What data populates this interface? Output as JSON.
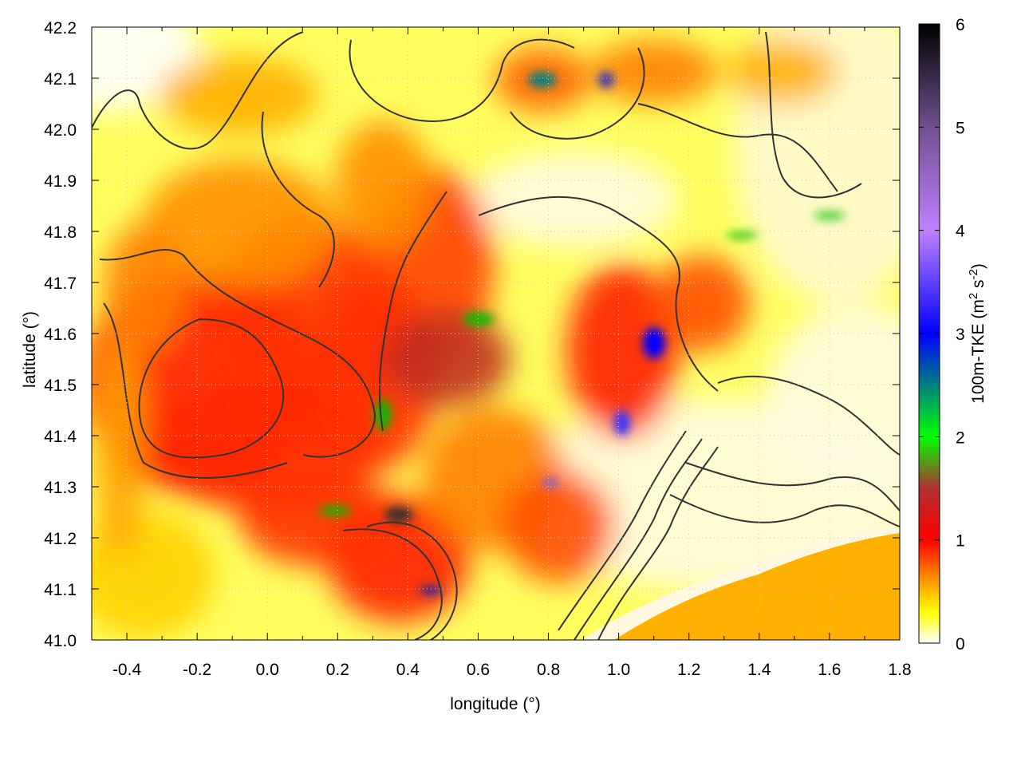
{
  "chart_data": {
    "type": "heatmap",
    "title": "",
    "xlabel": "longitude (°)",
    "ylabel": "latitude (°)",
    "xlim": [
      -0.5,
      1.8
    ],
    "ylim": [
      41.0,
      42.2
    ],
    "xticks": [
      "-0.4",
      "-0.2",
      "0.0",
      "0.2",
      "0.4",
      "0.6",
      "0.8",
      "1.0",
      "1.2",
      "1.4",
      "1.6",
      "1.8"
    ],
    "yticks": [
      "41.0",
      "41.1",
      "41.2",
      "41.3",
      "41.4",
      "41.5",
      "41.6",
      "41.7",
      "41.8",
      "41.9",
      "42.0",
      "42.1",
      "42.2"
    ],
    "grid": true,
    "colorbar": {
      "label": "100m-TKE (m",
      "label_sup1": "2",
      "label_mid": " s",
      "label_sup2": "-2",
      "label_end": ")",
      "range": [
        0,
        6
      ],
      "ticks": [
        "0",
        "1",
        "2",
        "3",
        "4",
        "5",
        "6"
      ],
      "colors": [
        {
          "v": 0,
          "c": "#ffffff"
        },
        {
          "v": 0.3,
          "c": "#ffff00"
        },
        {
          "v": 0.6,
          "c": "#ff9900"
        },
        {
          "v": 1.0,
          "c": "#ff0000"
        },
        {
          "v": 1.5,
          "c": "#b03030"
        },
        {
          "v": 2.0,
          "c": "#00ff00"
        },
        {
          "v": 2.5,
          "c": "#008080"
        },
        {
          "v": 3.0,
          "c": "#0000ff"
        },
        {
          "v": 4.0,
          "c": "#c080ff"
        },
        {
          "v": 5.0,
          "c": "#705090"
        },
        {
          "v": 6.0,
          "c": "#000000"
        }
      ]
    },
    "overlay": "terrain contour lines (dark grey)"
  }
}
